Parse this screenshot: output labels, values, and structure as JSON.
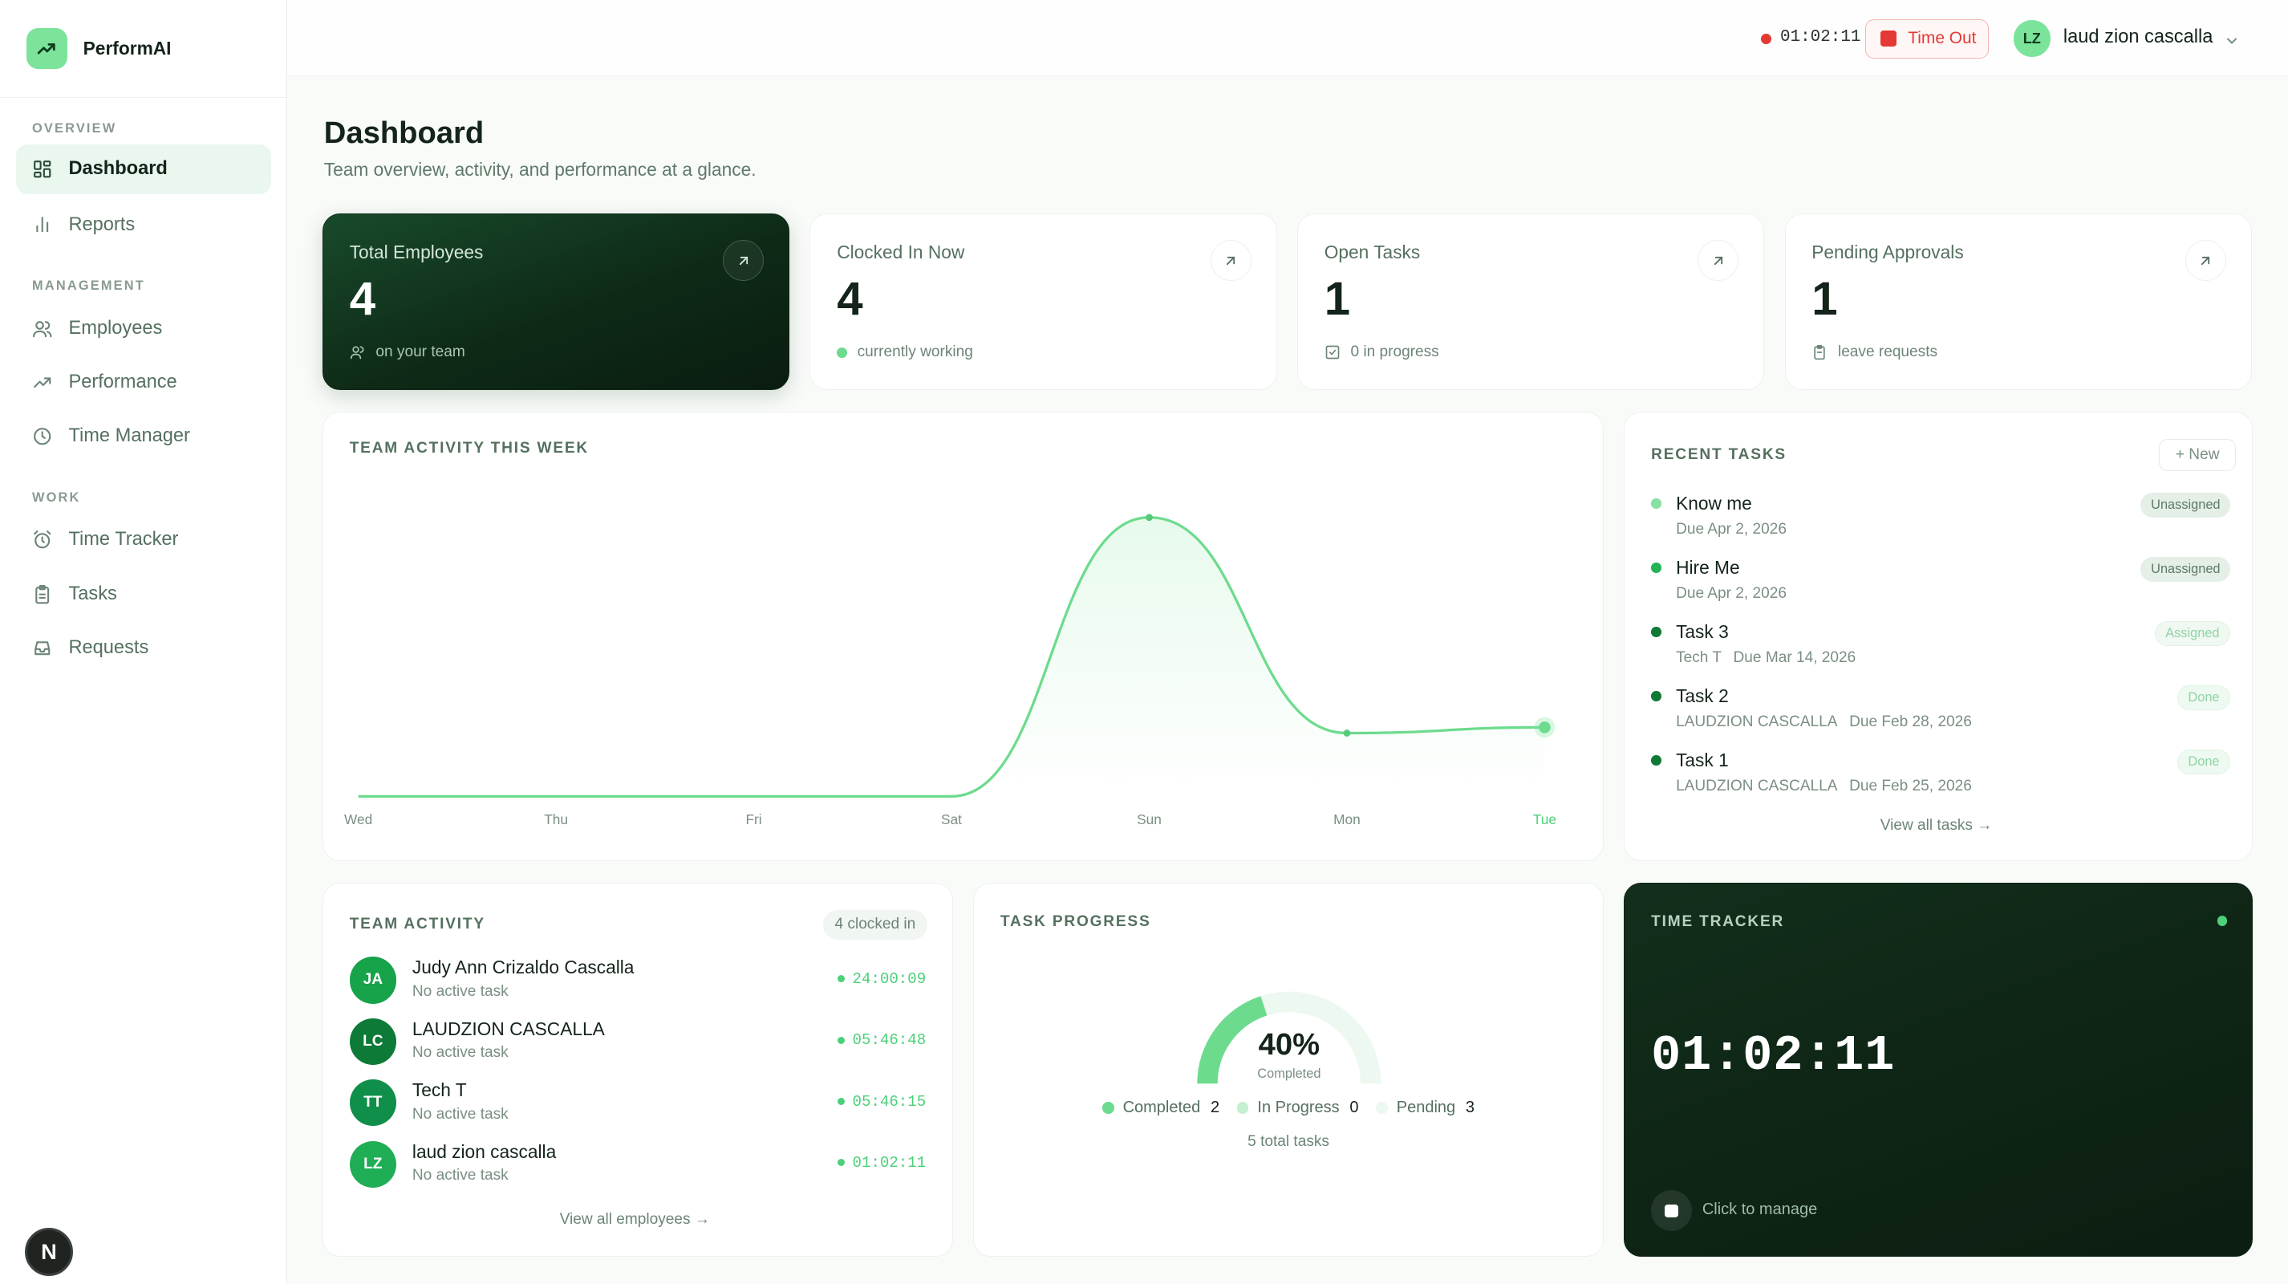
{
  "app": {
    "name": "PerformAI"
  },
  "sidebar": {
    "sections": [
      "OVERVIEW",
      "MANAGEMENT",
      "WORK"
    ],
    "items": [
      {
        "label": "Dashboard",
        "icon": "grid-icon",
        "active": true
      },
      {
        "label": "Reports",
        "icon": "bar-chart-icon"
      },
      {
        "label": "Employees",
        "icon": "users-icon"
      },
      {
        "label": "Performance",
        "icon": "trending-up-icon"
      },
      {
        "label": "Time Manager",
        "icon": "clock-icon"
      },
      {
        "label": "Time Tracker",
        "icon": "alarm-clock-icon"
      },
      {
        "label": "Tasks",
        "icon": "clipboard-icon"
      },
      {
        "label": "Requests",
        "icon": "inbox-icon"
      }
    ],
    "badge": "N"
  },
  "topbar": {
    "timer": "01:02:11",
    "timeout_label": "Time Out",
    "user_initials": "LZ",
    "user_name": "laud zion cascalla"
  },
  "page": {
    "title": "Dashboard",
    "subtitle": "Team overview, activity, and performance at a glance."
  },
  "stats": [
    {
      "title": "Total Employees",
      "value": "4",
      "foot": "on your team",
      "foot_icon": "users-icon"
    },
    {
      "title": "Clocked In Now",
      "value": "4",
      "foot": "currently working",
      "foot_icon": "green-dot"
    },
    {
      "title": "Open Tasks",
      "value": "1",
      "foot": "0 in progress",
      "foot_icon": "check-square-icon"
    },
    {
      "title": "Pending Approvals",
      "value": "1",
      "foot": "leave requests",
      "foot_icon": "clipboard-icon"
    }
  ],
  "activity_chart": {
    "title": "TEAM ACTIVITY THIS WEEK"
  },
  "chart_data": {
    "type": "area",
    "title": "TEAM ACTIVITY THIS WEEK",
    "categories": [
      "Wed",
      "Thu",
      "Fri",
      "Sat",
      "Sun",
      "Mon",
      "Tue"
    ],
    "values": [
      0,
      0,
      0,
      0,
      4.85,
      1.1,
      1.2
    ],
    "ylim": [
      0,
      5
    ],
    "grid": false,
    "legend": "none"
  },
  "recent_tasks": {
    "title": "RECENT TASKS",
    "new_label": "+ New",
    "view_all": "View all tasks →",
    "items": [
      {
        "name": "Know me",
        "meta": [
          "Due Apr 2, 2026"
        ],
        "status": "Unassigned",
        "dot": "#86e0a2"
      },
      {
        "name": "Hire Me",
        "meta": [
          "Due Apr 2, 2026"
        ],
        "status": "Unassigned",
        "dot": "#22b454"
      },
      {
        "name": "Task 3",
        "meta": [
          "Tech T",
          "Due Mar 14, 2026"
        ],
        "status": "Assigned",
        "dot": "#0f7a36"
      },
      {
        "name": "Task 2",
        "meta": [
          "LAUDZION CASCALLA",
          "Due Feb 28, 2026"
        ],
        "status": "Done",
        "dot": "#0f7a36"
      },
      {
        "name": "Task 1",
        "meta": [
          "LAUDZION CASCALLA",
          "Due Feb 25, 2026"
        ],
        "status": "Done",
        "dot": "#0f7a36"
      }
    ]
  },
  "team_activity": {
    "title": "TEAM ACTIVITY",
    "badge": "4 clocked in",
    "view_all": "View all employees →",
    "members": [
      {
        "initials": "JA",
        "name": "Judy Ann Crizaldo Cascalla",
        "sub": "No active task",
        "time": "24:00:09",
        "color": "#16a34a"
      },
      {
        "initials": "LC",
        "name": "LAUDZION CASCALLA",
        "sub": "No active task",
        "time": "05:46:48",
        "color": "#0d7a37"
      },
      {
        "initials": "TT",
        "name": "Tech T",
        "sub": "No active task",
        "time": "05:46:15",
        "color": "#0f8f4a"
      },
      {
        "initials": "LZ",
        "name": "laud zion cascalla",
        "sub": "No active task",
        "time": "01:02:11",
        "color": "#1fae55"
      }
    ]
  },
  "task_progress": {
    "title": "TASK PROGRESS",
    "percent_label": "40%",
    "percent": 0.4,
    "center_sub": "Completed",
    "legend": [
      {
        "label": "Completed",
        "value": "2",
        "color": "#6ddb8e"
      },
      {
        "label": "In Progress",
        "value": "0",
        "color": "#c4efd0"
      },
      {
        "label": "Pending",
        "value": "3",
        "color": "#edf8f0"
      }
    ],
    "total": "5 total tasks"
  },
  "time_tracker": {
    "title": "TIME TRACKER",
    "time": "01:02:11",
    "action": "Click to manage"
  }
}
